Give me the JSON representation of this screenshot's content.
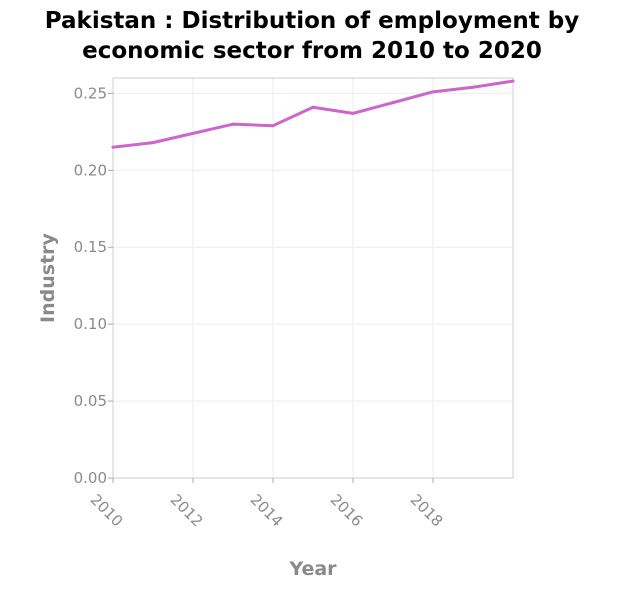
{
  "chart_data": {
    "type": "line",
    "title_lines": [
      "Pakistan : Distribution of employment by",
      "economic sector from 2010 to 2020"
    ],
    "xlabel": "Year",
    "ylabel": "Industry",
    "x": [
      2010,
      2011,
      2012,
      2013,
      2014,
      2015,
      2016,
      2017,
      2018,
      2019,
      2020
    ],
    "series": [
      {
        "values": [
          0.215,
          0.218,
          0.224,
          0.23,
          0.229,
          0.241,
          0.237,
          0.244,
          0.251,
          0.254,
          0.258
        ],
        "color": "#cc66cc"
      }
    ],
    "xlim": [
      2010,
      2020
    ],
    "ylim": [
      0,
      0.26
    ],
    "xticks": [
      2010,
      2012,
      2014,
      2016,
      2018
    ],
    "xtick_labels": [
      "2010",
      "2012",
      "2014",
      "2016",
      "2018"
    ],
    "yticks": [
      0,
      0.05,
      0.1,
      0.15,
      0.2,
      0.25
    ],
    "ytick_labels": [
      "0.00",
      "0.05",
      "0.10",
      "0.15",
      "0.20",
      "0.25"
    ],
    "grid": true
  }
}
